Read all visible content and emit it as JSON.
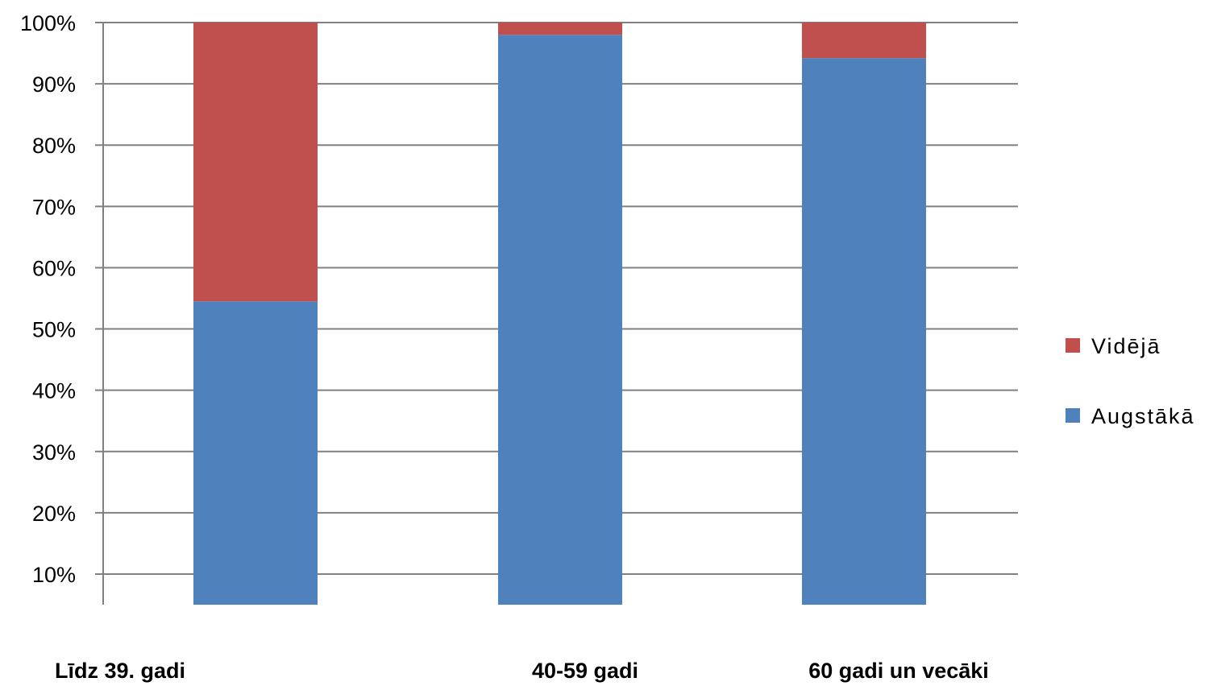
{
  "chart_data": {
    "type": "bar",
    "stacked": true,
    "categories": [
      "Līdz 39. gadi",
      "40-59 gadi",
      "60 gadi un vecāki"
    ],
    "series": [
      {
        "name": "Augstākā",
        "color": "#4F81BD",
        "values": [
          54.5,
          98,
          94.2
        ]
      },
      {
        "name": "Vidējā",
        "color": "#C0504D",
        "values": [
          45.5,
          2,
          5.8
        ]
      }
    ],
    "y_ticks": [
      "10%",
      "20%",
      "30%",
      "40%",
      "50%",
      "60%",
      "70%",
      "80%",
      "90%",
      "100%"
    ],
    "ylim": [
      5,
      100
    ],
    "grid": true,
    "legend_position": "right",
    "legend_order": [
      "Vidējā",
      "Augstākā"
    ],
    "title": "",
    "xlabel": "",
    "ylabel": ""
  }
}
